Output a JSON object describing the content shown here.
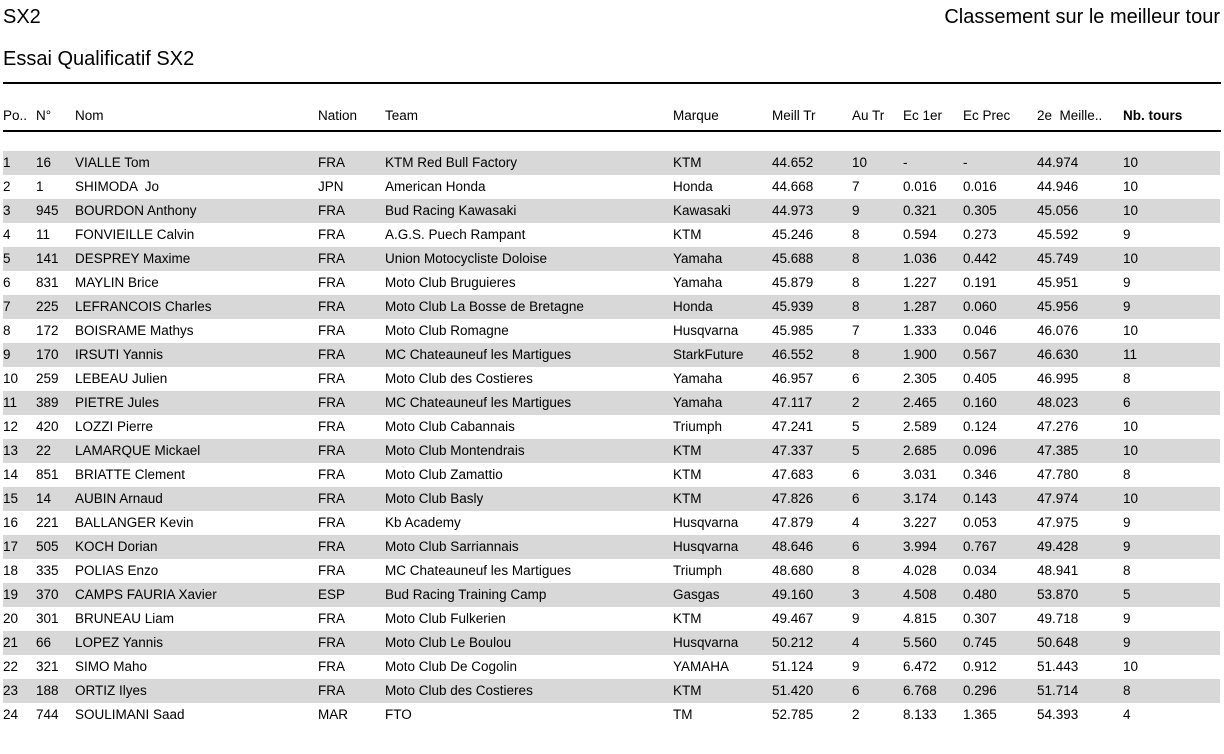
{
  "header": {
    "category": "SX2",
    "session": "Essai Qualificatif SX2",
    "classification_title": "Classement sur le meilleur tour"
  },
  "colors": {
    "row_alt": "#d8d8d8",
    "text": "#000000",
    "rule": "#000000"
  },
  "table": {
    "columns": [
      {
        "key": "pos",
        "label": "Po.."
      },
      {
        "key": "num",
        "label": "N°"
      },
      {
        "key": "name",
        "label": "Nom"
      },
      {
        "key": "nation",
        "label": "Nation"
      },
      {
        "key": "team",
        "label": "Team"
      },
      {
        "key": "marque",
        "label": "Marque"
      },
      {
        "key": "meill_tr",
        "label": "Meill Tr"
      },
      {
        "key": "au_tr",
        "label": "Au Tr"
      },
      {
        "key": "ec_1er",
        "label": "Ec 1er"
      },
      {
        "key": "ec_prec",
        "label": "Ec Prec"
      },
      {
        "key": "meilleur_2e",
        "label": "2e  Meille.."
      },
      {
        "key": "nb_tours",
        "label": "Nb. tours"
      }
    ],
    "rows": [
      [
        "1",
        "16",
        "VIALLE Tom",
        "FRA",
        "KTM Red Bull Factory",
        "KTM",
        "44.652",
        "10",
        "-",
        "-",
        "44.974",
        "10"
      ],
      [
        "2",
        "1",
        "SHIMODA  Jo",
        "JPN",
        "American Honda",
        "Honda",
        "44.668",
        "7",
        "0.016",
        "0.016",
        "44.946",
        "10"
      ],
      [
        "3",
        "945",
        "BOURDON Anthony",
        "FRA",
        "Bud Racing Kawasaki",
        "Kawasaki",
        "44.973",
        "9",
        "0.321",
        "0.305",
        "45.056",
        "10"
      ],
      [
        "4",
        "11",
        "FONVIEILLE Calvin",
        "FRA",
        "A.G.S. Puech Rampant",
        "KTM",
        "45.246",
        "8",
        "0.594",
        "0.273",
        "45.592",
        "9"
      ],
      [
        "5",
        "141",
        "DESPREY Maxime",
        "FRA",
        "Union Motocycliste Doloise",
        "Yamaha",
        "45.688",
        "8",
        "1.036",
        "0.442",
        "45.749",
        "10"
      ],
      [
        "6",
        "831",
        "MAYLIN Brice",
        "FRA",
        "Moto Club Bruguieres",
        "Yamaha",
        "45.879",
        "8",
        "1.227",
        "0.191",
        "45.951",
        "9"
      ],
      [
        "7",
        "225",
        "LEFRANCOIS Charles",
        "FRA",
        "Moto Club La Bosse de Bretagne",
        "Honda",
        "45.939",
        "8",
        "1.287",
        "0.060",
        "45.956",
        "9"
      ],
      [
        "8",
        "172",
        "BOISRAME Mathys",
        "FRA",
        "Moto Club Romagne",
        "Husqvarna",
        "45.985",
        "7",
        "1.333",
        "0.046",
        "46.076",
        "10"
      ],
      [
        "9",
        "170",
        "IRSUTI Yannis",
        "FRA",
        "MC Chateauneuf les Martigues",
        "StarkFuture",
        "46.552",
        "8",
        "1.900",
        "0.567",
        "46.630",
        "11"
      ],
      [
        "10",
        "259",
        "LEBEAU Julien",
        "FRA",
        "Moto Club des Costieres",
        "Yamaha",
        "46.957",
        "6",
        "2.305",
        "0.405",
        "46.995",
        "8"
      ],
      [
        "11",
        "389",
        "PIETRE Jules",
        "FRA",
        "MC Chateauneuf les Martigues",
        "Yamaha",
        "47.117",
        "2",
        "2.465",
        "0.160",
        "48.023",
        "6"
      ],
      [
        "12",
        "420",
        "LOZZI Pierre",
        "FRA",
        "Moto Club Cabannais",
        "Triumph",
        "47.241",
        "5",
        "2.589",
        "0.124",
        "47.276",
        "10"
      ],
      [
        "13",
        "22",
        "LAMARQUE Mickael",
        "FRA",
        "Moto Club Montendrais",
        "KTM",
        "47.337",
        "5",
        "2.685",
        "0.096",
        "47.385",
        "10"
      ],
      [
        "14",
        "851",
        "BRIATTE Clement",
        "FRA",
        "Moto Club Zamattio",
        "KTM",
        "47.683",
        "6",
        "3.031",
        "0.346",
        "47.780",
        "8"
      ],
      [
        "15",
        "14",
        "AUBIN Arnaud",
        "FRA",
        "Moto Club Basly",
        "KTM",
        "47.826",
        "6",
        "3.174",
        "0.143",
        "47.974",
        "10"
      ],
      [
        "16",
        "221",
        "BALLANGER Kevin",
        "FRA",
        "Kb Academy",
        "Husqvarna",
        "47.879",
        "4",
        "3.227",
        "0.053",
        "47.975",
        "9"
      ],
      [
        "17",
        "505",
        "KOCH Dorian",
        "FRA",
        "Moto Club Sarriannais",
        "Husqvarna",
        "48.646",
        "6",
        "3.994",
        "0.767",
        "49.428",
        "9"
      ],
      [
        "18",
        "335",
        "POLIAS Enzo",
        "FRA",
        "MC Chateauneuf les Martigues",
        "Triumph",
        "48.680",
        "8",
        "4.028",
        "0.034",
        "48.941",
        "8"
      ],
      [
        "19",
        "370",
        "CAMPS FAURIA Xavier",
        "ESP",
        "Bud Racing Training Camp",
        "Gasgas",
        "49.160",
        "3",
        "4.508",
        "0.480",
        "53.870",
        "5"
      ],
      [
        "20",
        "301",
        "BRUNEAU Liam",
        "FRA",
        "Moto Club Fulkerien",
        "KTM",
        "49.467",
        "9",
        "4.815",
        "0.307",
        "49.718",
        "9"
      ],
      [
        "21",
        "66",
        "LOPEZ Yannis",
        "FRA",
        "Moto Club Le Boulou",
        "Husqvarna",
        "50.212",
        "4",
        "5.560",
        "0.745",
        "50.648",
        "9"
      ],
      [
        "22",
        "321",
        "SIMO Maho",
        "FRA",
        "Moto Club De Cogolin",
        "YAMAHA",
        "51.124",
        "9",
        "6.472",
        "0.912",
        "51.443",
        "10"
      ],
      [
        "23",
        "188",
        "ORTIZ Ilyes",
        "FRA",
        "Moto Club des Costieres",
        "KTM",
        "51.420",
        "6",
        "6.768",
        "0.296",
        "51.714",
        "8"
      ],
      [
        "24",
        "744",
        "SOULIMANI Saad",
        "MAR",
        "FTO",
        "TM",
        "52.785",
        "2",
        "8.133",
        "1.365",
        "54.393",
        "4"
      ]
    ]
  }
}
